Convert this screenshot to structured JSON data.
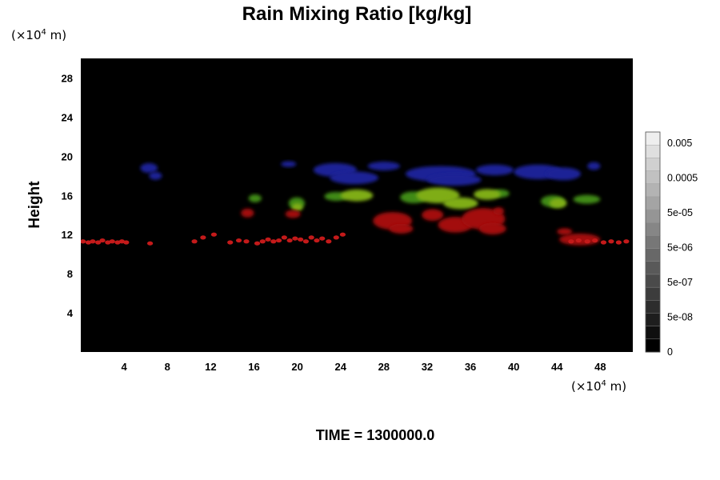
{
  "chart_data": {
    "type": "heatmap",
    "title": "Rain Mixing Ratio [kg/kg]",
    "ylabel": "Height",
    "x_unit_prefix": "(×10",
    "x_unit_exp": "4",
    "x_unit_suffix": " m)",
    "y_unit_prefix": "(×10",
    "y_unit_exp": "4",
    "y_unit_suffix": " m)",
    "xlim": [
      0,
      51
    ],
    "ylim": [
      0,
      30
    ],
    "x_ticks": [
      4,
      8,
      12,
      16,
      20,
      24,
      28,
      32,
      36,
      40,
      44,
      48
    ],
    "x_tick_labels": [
      "4",
      "8",
      "12",
      "16",
      "20",
      "24",
      "28",
      "32",
      "36",
      "40",
      "44",
      "48"
    ],
    "y_ticks": [
      4,
      8,
      12,
      16,
      20,
      24,
      28
    ],
    "y_tick_labels": [
      "4",
      "8",
      "12",
      "16",
      "20",
      "24",
      "28"
    ],
    "background_color": "#000000",
    "colorbar": {
      "labels": [
        "0.005",
        "0.0005",
        "5e-05",
        "5e-06",
        "5e-07",
        "5e-08",
        "0"
      ],
      "levels": 17
    },
    "features": [
      {
        "color": "#1a2296",
        "cells": [
          [
            5.5,
            18.8,
            1.6,
            1.0
          ],
          [
            6.3,
            18.0,
            1.2,
            0.8
          ],
          [
            18.5,
            19.2,
            1.4,
            0.6
          ],
          [
            21.5,
            18.6,
            4.0,
            1.4
          ],
          [
            23.0,
            17.8,
            4.5,
            1.3
          ],
          [
            26.5,
            19.0,
            3.0,
            0.9
          ],
          [
            30.0,
            18.2,
            6.5,
            1.6
          ],
          [
            32.0,
            17.6,
            5.0,
            1.2
          ],
          [
            36.5,
            18.6,
            3.5,
            1.1
          ],
          [
            40.0,
            18.4,
            4.5,
            1.5
          ],
          [
            43.0,
            18.2,
            3.2,
            1.3
          ],
          [
            46.8,
            19.0,
            1.2,
            0.8
          ]
        ]
      },
      {
        "color": "#3f8a12",
        "cells": [
          [
            15.5,
            15.7,
            1.2,
            0.8
          ],
          [
            19.2,
            15.2,
            1.5,
            1.2
          ],
          [
            22.5,
            15.9,
            2.2,
            0.9
          ],
          [
            29.5,
            15.8,
            2.5,
            1.2
          ],
          [
            38.0,
            16.2,
            1.6,
            0.8
          ],
          [
            42.5,
            15.4,
            2.2,
            1.2
          ],
          [
            45.5,
            15.6,
            2.5,
            0.9
          ]
        ]
      },
      {
        "color": "#7fad18",
        "cells": [
          [
            19.5,
            14.8,
            1.0,
            0.8
          ],
          [
            24.0,
            16.0,
            3.0,
            1.2
          ],
          [
            31.0,
            16.0,
            4.0,
            1.6
          ],
          [
            33.5,
            15.2,
            3.2,
            1.2
          ],
          [
            36.3,
            16.1,
            2.5,
            1.1
          ],
          [
            43.3,
            15.2,
            1.6,
            1.0
          ]
        ]
      },
      {
        "color": "#a30f0f",
        "cells": [
          [
            14.8,
            14.2,
            1.2,
            0.9
          ],
          [
            18.9,
            14.1,
            1.4,
            0.8
          ],
          [
            27.0,
            13.4,
            3.6,
            1.8
          ],
          [
            28.5,
            12.6,
            2.2,
            1.0
          ],
          [
            31.5,
            14.0,
            2.0,
            1.2
          ],
          [
            33.0,
            13.0,
            3.2,
            1.6
          ],
          [
            35.2,
            13.6,
            4.0,
            2.2
          ],
          [
            36.8,
            12.6,
            2.5,
            1.2
          ],
          [
            38.1,
            14.4,
            1.0,
            0.8
          ],
          [
            44.2,
            11.5,
            3.8,
            1.2
          ],
          [
            44.0,
            12.3,
            1.4,
            0.7
          ]
        ]
      },
      {
        "color": "#c41a1a",
        "dots": [
          [
            0.2,
            11.3
          ],
          [
            0.7,
            11.2
          ],
          [
            1.1,
            11.3
          ],
          [
            1.6,
            11.2
          ],
          [
            2.0,
            11.4
          ],
          [
            2.5,
            11.2
          ],
          [
            2.9,
            11.3
          ],
          [
            3.4,
            11.2
          ],
          [
            3.8,
            11.3
          ],
          [
            4.2,
            11.2
          ],
          [
            6.4,
            11.1
          ],
          [
            10.5,
            11.3
          ],
          [
            11.3,
            11.7
          ],
          [
            12.3,
            12.0
          ],
          [
            13.8,
            11.2
          ],
          [
            14.6,
            11.4
          ],
          [
            15.3,
            11.3
          ],
          [
            16.3,
            11.1
          ],
          [
            16.8,
            11.3
          ],
          [
            17.3,
            11.5
          ],
          [
            17.8,
            11.3
          ],
          [
            18.3,
            11.4
          ],
          [
            18.8,
            11.7
          ],
          [
            19.3,
            11.4
          ],
          [
            19.8,
            11.6
          ],
          [
            20.3,
            11.5
          ],
          [
            20.8,
            11.3
          ],
          [
            21.3,
            11.7
          ],
          [
            21.8,
            11.4
          ],
          [
            22.3,
            11.6
          ],
          [
            22.9,
            11.3
          ],
          [
            23.6,
            11.7
          ],
          [
            24.2,
            12.0
          ],
          [
            45.3,
            11.3
          ],
          [
            46.0,
            11.4
          ],
          [
            46.8,
            11.3
          ],
          [
            47.5,
            11.4
          ],
          [
            48.3,
            11.2
          ],
          [
            49.0,
            11.3
          ],
          [
            49.7,
            11.2
          ],
          [
            50.4,
            11.3
          ]
        ]
      }
    ]
  },
  "time_label": "TIME = 1300000.0"
}
